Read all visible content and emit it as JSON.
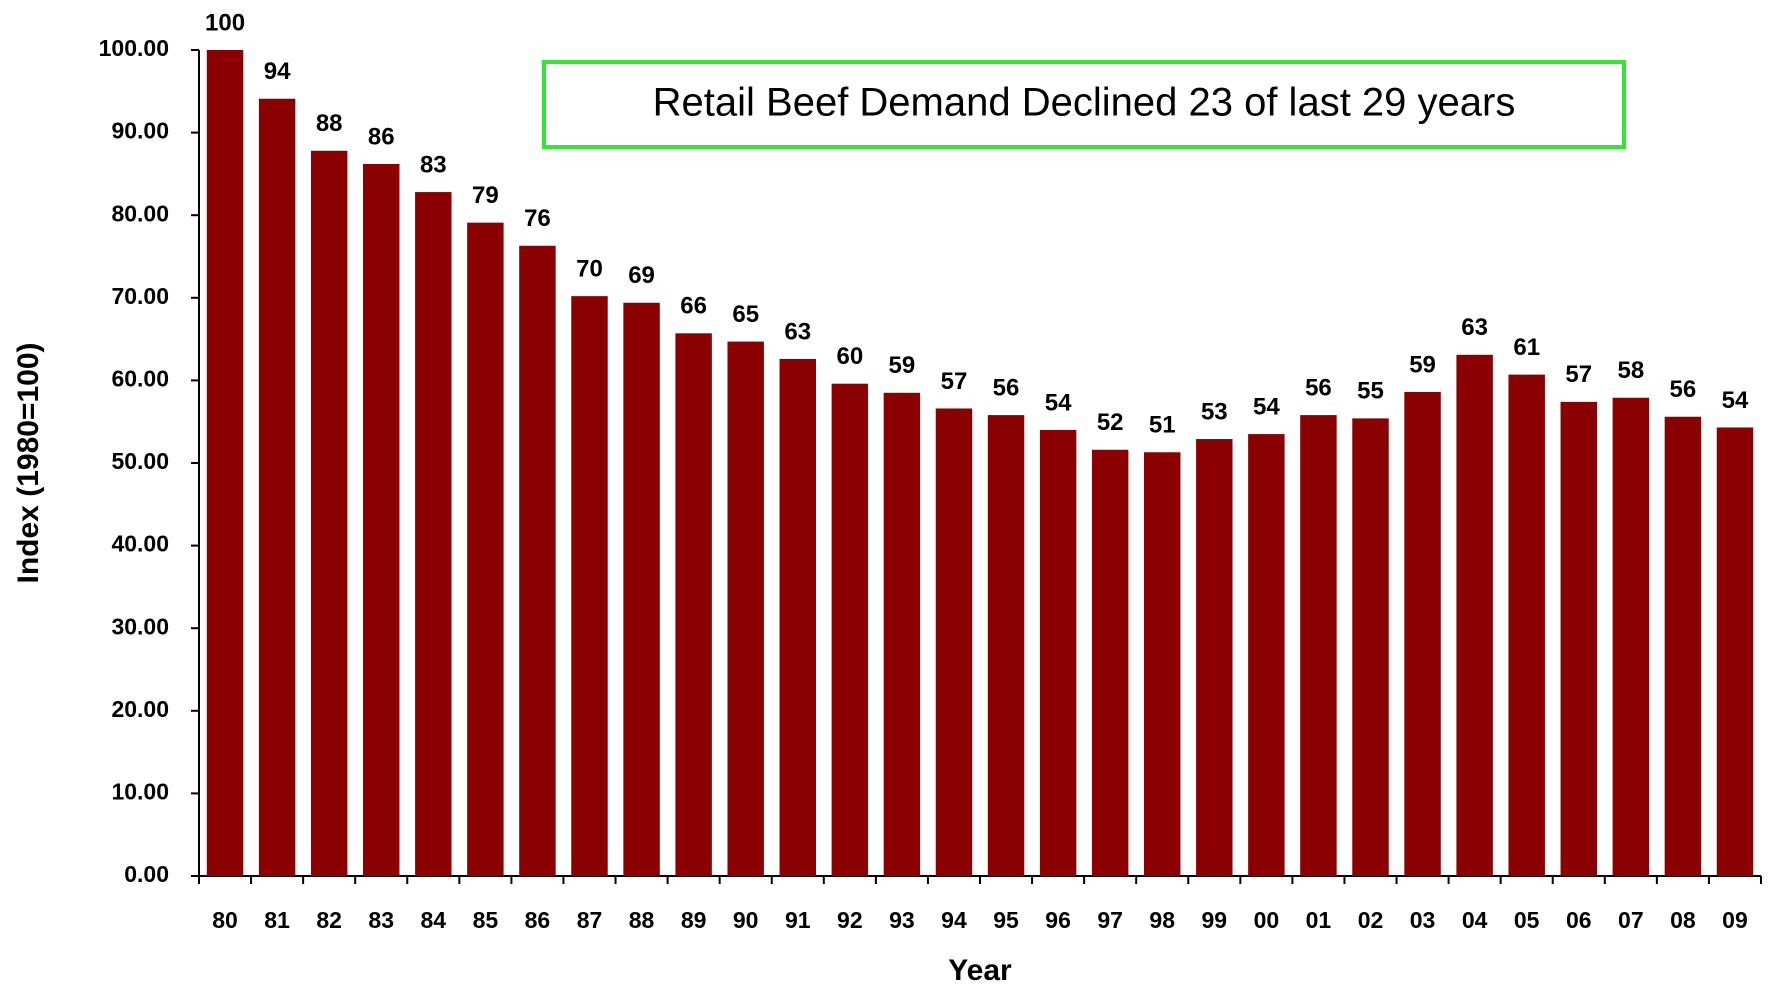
{
  "chart_data": {
    "type": "bar",
    "annotation": "Retail Beef Demand Declined 23 of last 29 years",
    "x_label": "Year",
    "y_label": "Index (1980=100)",
    "categories": [
      "80",
      "81",
      "82",
      "83",
      "84",
      "85",
      "86",
      "87",
      "88",
      "89",
      "90",
      "91",
      "92",
      "93",
      "94",
      "95",
      "96",
      "97",
      "98",
      "99",
      "00",
      "01",
      "02",
      "03",
      "04",
      "05",
      "06",
      "07",
      "08",
      "09"
    ],
    "values": [
      100,
      94.1,
      87.8,
      86.2,
      82.8,
      79.1,
      76.3,
      70.2,
      69.4,
      65.7,
      64.7,
      62.6,
      59.6,
      58.5,
      56.6,
      55.8,
      54.0,
      51.6,
      51.3,
      52.9,
      53.5,
      55.8,
      55.4,
      58.6,
      63.1,
      60.7,
      57.4,
      57.9,
      55.6,
      54.3
    ],
    "value_labels": [
      "100",
      "94",
      "88",
      "86",
      "83",
      "79",
      "76",
      "70",
      "69",
      "66",
      "65",
      "63",
      "60",
      "59",
      "57",
      "56",
      "54",
      "52",
      "51",
      "53",
      "54",
      "56",
      "55",
      "59",
      "63",
      "61",
      "57",
      "58",
      "56",
      "54"
    ],
    "color": "#8b0000",
    "ylim": [
      0,
      100
    ],
    "yticks": [
      {
        "value": 0,
        "label": "0.00"
      },
      {
        "value": 10,
        "label": "10.00"
      },
      {
        "value": 20,
        "label": "20.00"
      },
      {
        "value": 30,
        "label": "30.00"
      },
      {
        "value": 40,
        "label": "40.00"
      },
      {
        "value": 50,
        "label": "50.00"
      },
      {
        "value": 60,
        "label": "60.00"
      },
      {
        "value": 70,
        "label": "70.00"
      },
      {
        "value": 80,
        "label": "80.00"
      },
      {
        "value": 90,
        "label": "90.00"
      },
      {
        "value": 100,
        "label": "100.00"
      }
    ],
    "grid": false
  }
}
